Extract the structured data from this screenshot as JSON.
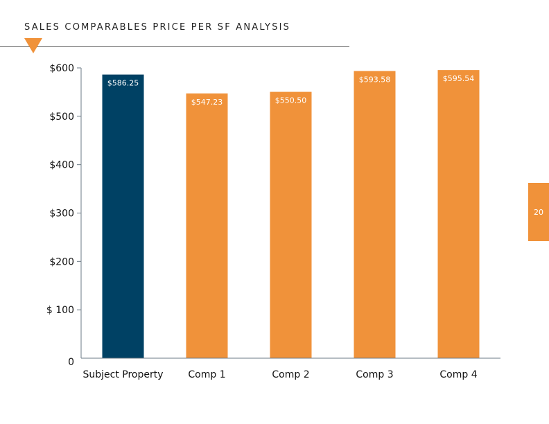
{
  "header": {
    "title": "SALES COMPARABLES PRICE PER SF ANALYSIS"
  },
  "page": {
    "number": "20"
  },
  "colors": {
    "accent": "#f0923a",
    "subject": "#004164",
    "axis": "#6b7a85"
  },
  "chart_data": {
    "type": "bar",
    "title": "SALES COMPARABLES PRICE PER SF ANALYSIS",
    "categories": [
      "Subject Property",
      "Comp 1",
      "Comp 2",
      "Comp 3",
      "Comp 4"
    ],
    "values": [
      586.25,
      547.23,
      550.5,
      593.58,
      595.54
    ],
    "value_labels": [
      "$586.25",
      "$547.23",
      "$550.50",
      "$593.58",
      "$595.54"
    ],
    "bar_colors": [
      "#004164",
      "#f0923a",
      "#f0923a",
      "#f0923a",
      "#f0923a"
    ],
    "ylim": [
      0,
      600
    ],
    "yticks": [
      0,
      100,
      200,
      300,
      400,
      500,
      600
    ],
    "ytick_labels": [
      "0",
      "$ 100",
      "$200",
      "$300",
      "$400",
      "$500",
      "$600"
    ],
    "xlabel": "",
    "ylabel": "",
    "grid": false,
    "legend": "none"
  }
}
